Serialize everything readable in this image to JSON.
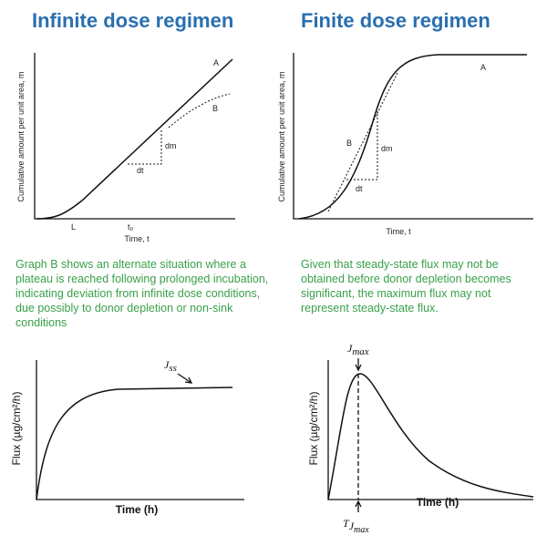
{
  "left": {
    "title": "Infinite dose regimen",
    "graph": {
      "ylabel": "Cumulative amount per unit area, m",
      "xlabel": "Time, t",
      "curve_a": "A",
      "curve_b": "B",
      "dm": "dm",
      "dt": "dt",
      "lag": "L",
      "t0": "t₀"
    },
    "caption": [
      "Graph B shows an alternate situation where a",
      "plateau is reached following prolonged incubation,",
      "indicating deviation from infinite dose conditions,",
      "due possibly to donor depletion or non-sink",
      "conditions"
    ],
    "flux": {
      "ylabel": "Flux (µg/cm²/h)",
      "xlabel": "Time (h)",
      "jss": {
        "main": "J",
        "sub": "ss"
      }
    }
  },
  "right": {
    "title": "Finite dose regimen",
    "graph": {
      "ylabel": "Cumulative amount per unit area, m",
      "xlabel": "Time, t",
      "curve_a": "A",
      "curve_b": "B",
      "dm": "dm",
      "dt": "dt"
    },
    "caption": [
      "Given that steady-state flux may not be",
      "obtained before donor depletion becomes",
      "significant, the maximum flux may not",
      "represent steady-state flux."
    ],
    "flux": {
      "ylabel": "Flux (µg/cm²/h)",
      "xlabel": "Time (h)",
      "jmax": {
        "main": "J",
        "sub": "max"
      },
      "tjmax": {
        "main": "T",
        "sub2": "J",
        "sub": "max"
      }
    }
  }
}
